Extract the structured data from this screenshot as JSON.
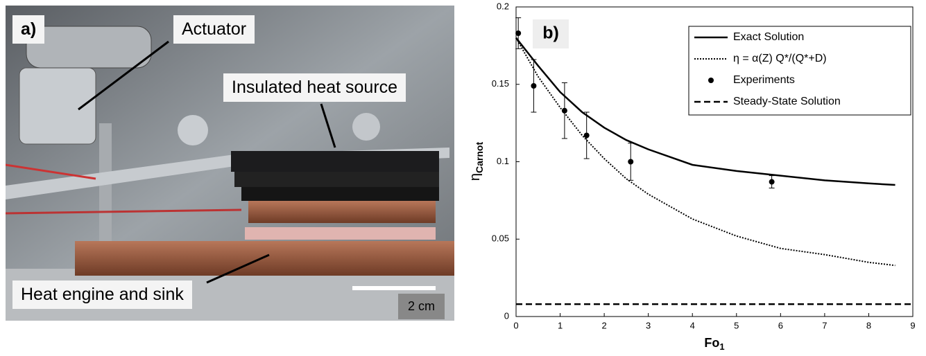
{
  "photo": {
    "panel_label": "a)",
    "labels": [
      "Actuator",
      "Insulated heat source",
      "Heat engine and sink"
    ],
    "scale_bar": "2 cm"
  },
  "chart_data": {
    "type": "line",
    "panel_label": "b)",
    "x_label": {
      "text": "Fo",
      "subscript": "1"
    },
    "y_label": {
      "text": "η",
      "subscript": "Carnot"
    },
    "xlim": [
      0,
      9
    ],
    "xticks": [
      0,
      1,
      2,
      3,
      4,
      5,
      6,
      7,
      8,
      9
    ],
    "ylim": [
      0,
      0.2
    ],
    "yticks": [
      0,
      0.05,
      0.1,
      0.15,
      0.2
    ],
    "legend": "upper right",
    "series": [
      {
        "name": "Exact Solution",
        "style": "solid",
        "color": "#000000",
        "x": [
          0,
          0.5,
          1,
          1.5,
          2,
          2.5,
          3,
          4,
          5,
          6,
          7,
          8,
          8.6
        ],
        "values": [
          0.18,
          0.162,
          0.145,
          0.132,
          0.122,
          0.114,
          0.108,
          0.098,
          0.094,
          0.091,
          0.088,
          0.086,
          0.085
        ]
      },
      {
        "name": "η = α(Z) Q*/(Q*+D)",
        "style": "dotted",
        "color": "#000000",
        "x": [
          0,
          0.5,
          1,
          1.5,
          2,
          2.5,
          3,
          4,
          5,
          6,
          7,
          8,
          8.6
        ],
        "values": [
          0.18,
          0.155,
          0.135,
          0.117,
          0.102,
          0.089,
          0.079,
          0.063,
          0.052,
          0.044,
          0.04,
          0.035,
          0.033
        ]
      },
      {
        "name": "Experiments",
        "style": "marker",
        "color": "#000000",
        "x": [
          0.05,
          0.4,
          1.1,
          1.6,
          2.6,
          5.8
        ],
        "values": [
          0.183,
          0.149,
          0.133,
          0.117,
          0.1,
          0.087
        ],
        "errors": [
          0.01,
          0.017,
          0.018,
          0.015,
          0.012,
          0.004
        ]
      },
      {
        "name": "Steady-State Solution",
        "style": "dashed",
        "color": "#000000",
        "x": [
          0,
          9
        ],
        "values": [
          0.008,
          0.008
        ]
      }
    ]
  }
}
